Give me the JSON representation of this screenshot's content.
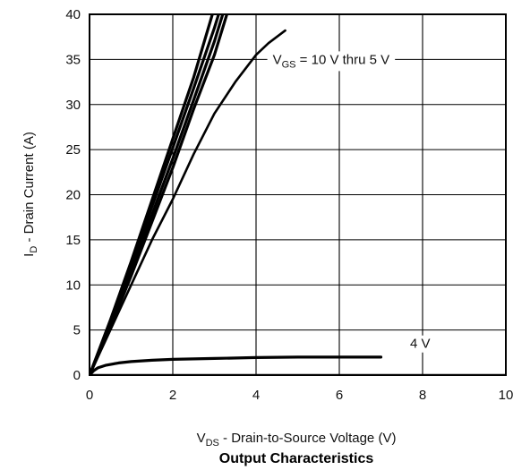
{
  "chart_data": {
    "type": "line",
    "title": "Output Characteristics",
    "xlabel": {
      "main": "V",
      "sub": "DS",
      "rest": " - Drain-to-Source Voltage (V)"
    },
    "ylabel": {
      "main": "I",
      "sub": "D",
      "rest": " - Drain Current (A)"
    },
    "xlim": [
      0,
      10
    ],
    "ylim": [
      0,
      40
    ],
    "xticks": [
      "0",
      "2",
      "4",
      "6",
      "8",
      "10"
    ],
    "yticks": [
      "0",
      "5",
      "10",
      "15",
      "20",
      "25",
      "30",
      "35",
      "40"
    ],
    "grid": true,
    "annotations": [
      {
        "id": "vgs-10-5",
        "pre": "V",
        "sub": "GS",
        "post": " = 10 V thru 5 V",
        "x": 4.4,
        "y": 35
      },
      {
        "id": "vgs-4",
        "pre": "4 V",
        "sub": "",
        "post": "",
        "x": 7.7,
        "y": 3.5
      }
    ],
    "series": [
      {
        "id": "vgs-10v",
        "points": [
          [
            0,
            0
          ],
          [
            0.5,
            5.3
          ],
          [
            1,
            11
          ],
          [
            1.5,
            17
          ],
          [
            2,
            23
          ],
          [
            2.5,
            29.5
          ],
          [
            3,
            35.5
          ],
          [
            3.3,
            40
          ]
        ]
      },
      {
        "id": "vgs-9v",
        "points": [
          [
            0,
            0
          ],
          [
            0.5,
            5.6
          ],
          [
            1,
            11.6
          ],
          [
            1.5,
            17.8
          ],
          [
            2,
            24
          ],
          [
            2.5,
            30.5
          ],
          [
            3,
            37
          ],
          [
            3.2,
            40
          ]
        ]
      },
      {
        "id": "vgs-8v",
        "points": [
          [
            0,
            0
          ],
          [
            0.5,
            5.9
          ],
          [
            1,
            12.2
          ],
          [
            1.5,
            18.7
          ],
          [
            2,
            25.2
          ],
          [
            2.5,
            31.8
          ],
          [
            3,
            38.5
          ],
          [
            3.1,
            40
          ]
        ]
      },
      {
        "id": "vgs-7v",
        "points": [
          [
            0,
            0
          ],
          [
            0.5,
            6.1
          ],
          [
            1,
            12.6
          ],
          [
            1.5,
            19.4
          ],
          [
            2,
            26.2
          ],
          [
            2.5,
            33
          ],
          [
            2.95,
            40
          ]
        ]
      },
      {
        "id": "vgs-5v",
        "points": [
          [
            0,
            0
          ],
          [
            0.5,
            5
          ],
          [
            1,
            10
          ],
          [
            1.5,
            15
          ],
          [
            2,
            19.5
          ],
          [
            2.5,
            24.5
          ],
          [
            3,
            29
          ],
          [
            3.5,
            32.5
          ],
          [
            4,
            35.5
          ],
          [
            4.3,
            36.8
          ],
          [
            4.7,
            38.2
          ]
        ]
      },
      {
        "id": "vgs-4v",
        "points": [
          [
            0,
            0
          ],
          [
            0.1,
            0.5
          ],
          [
            0.2,
            0.8
          ],
          [
            0.4,
            1.1
          ],
          [
            0.7,
            1.35
          ],
          [
            1,
            1.5
          ],
          [
            1.5,
            1.65
          ],
          [
            2,
            1.75
          ],
          [
            3,
            1.85
          ],
          [
            4,
            1.95
          ],
          [
            5,
            2.0
          ],
          [
            6,
            2.0
          ],
          [
            7,
            2.0
          ]
        ]
      },
      {
        "id": "vgs-3v",
        "points": [
          [
            0,
            0
          ],
          [
            10,
            0
          ]
        ]
      }
    ]
  }
}
